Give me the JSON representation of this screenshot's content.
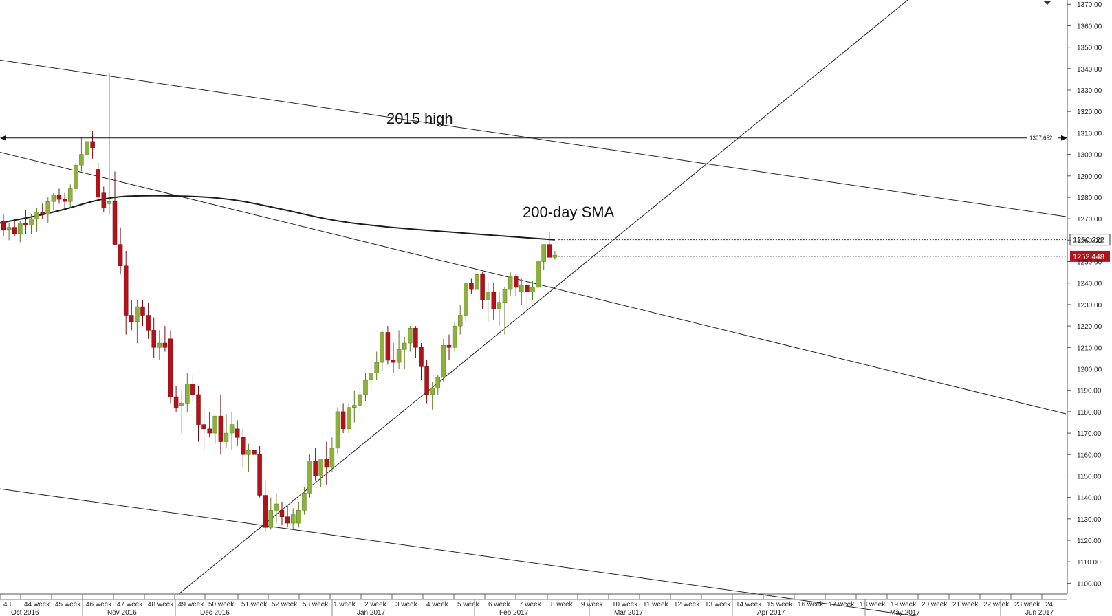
{
  "colors": {
    "up": "#8cb23b",
    "down": "#b3121a",
    "up_edge": "#5a7a1e",
    "down_edge": "#7a0c11",
    "trendline": "#222222",
    "sma": "#1a1a1a",
    "grid": "#e8e8e8",
    "last_price_tag": "#b3121a",
    "sma_tag": "#ffffff"
  },
  "chart_data": {
    "type": "candlestick",
    "y_axis": {
      "range": [
        1095,
        1372
      ],
      "ticks": [
        "1100.00",
        "1110.00",
        "1120.00",
        "1130.00",
        "1140.00",
        "1150.00",
        "1160.00",
        "1170.00",
        "1180.00",
        "1190.00",
        "1200.00",
        "1210.00",
        "1220.00",
        "1230.00",
        "1240.00",
        "1250.00",
        "1260.00",
        "1270.00",
        "1280.00",
        "1290.00",
        "1300.00",
        "1310.00",
        "1320.00",
        "1330.00",
        "1340.00",
        "1350.00",
        "1360.00",
        "1370.00"
      ],
      "position": "right"
    },
    "x_axis": {
      "week_labels": [
        "43",
        "44 week",
        "45 week",
        "46 week",
        "47 week",
        "48 week",
        "49 week",
        "50 week",
        "51 week",
        "52 week",
        "53 week",
        "1 week",
        "2 week",
        "3 week",
        "4 week",
        "5 week",
        "6 week",
        "7 week",
        "8 week",
        "9 week",
        "10 week",
        "11 week",
        "12 week",
        "13 week",
        "14 week",
        "15 week",
        "16 week",
        "17 week",
        "18 week",
        "19 week",
        "20 week",
        "21 week",
        "22 week",
        "23 week",
        "24"
      ],
      "month_labels": [
        "Oct 2016",
        "Nov 2016",
        "Dec 2016",
        "Jan 2017",
        "Feb 2017",
        "Mar 2017",
        "Apr 2017",
        "May 2017",
        "Jun 2017"
      ]
    },
    "candles": [
      [
        1269,
        1272,
        1262,
        1265
      ],
      [
        1265,
        1268,
        1260,
        1266
      ],
      [
        1266,
        1270,
        1262,
        1263
      ],
      [
        1263,
        1269,
        1259,
        1268
      ],
      [
        1268,
        1274,
        1263,
        1267
      ],
      [
        1267,
        1272,
        1263,
        1270
      ],
      [
        1270,
        1275,
        1264,
        1273
      ],
      [
        1273,
        1277,
        1270,
        1272
      ],
      [
        1272,
        1280,
        1268,
        1278
      ],
      [
        1278,
        1282,
        1274,
        1281
      ],
      [
        1281,
        1284,
        1277,
        1279
      ],
      [
        1279,
        1282,
        1274,
        1278
      ],
      [
        1278,
        1286,
        1275,
        1284
      ],
      [
        1284,
        1296,
        1282,
        1295
      ],
      [
        1295,
        1308,
        1292,
        1300
      ],
      [
        1300,
        1307,
        1292,
        1306
      ],
      [
        1306,
        1311,
        1298,
        1303
      ],
      [
        1293,
        1296,
        1278,
        1280
      ],
      [
        1282,
        1285,
        1273,
        1275
      ],
      [
        1277,
        1338,
        1272,
        1278
      ],
      [
        1278,
        1292,
        1258,
        1258
      ],
      [
        1258,
        1266,
        1244,
        1248
      ],
      [
        1248,
        1255,
        1216,
        1225
      ],
      [
        1225,
        1232,
        1218,
        1222
      ],
      [
        1222,
        1232,
        1212,
        1229
      ],
      [
        1229,
        1232,
        1220,
        1225
      ],
      [
        1225,
        1231,
        1214,
        1218
      ],
      [
        1218,
        1224,
        1205,
        1210
      ],
      [
        1210,
        1218,
        1204,
        1212
      ],
      [
        1212,
        1220,
        1208,
        1210
      ],
      [
        1214,
        1218,
        1184,
        1187
      ],
      [
        1187,
        1192,
        1180,
        1182
      ],
      [
        1183,
        1190,
        1170,
        1184
      ],
      [
        1184,
        1198,
        1180,
        1193
      ],
      [
        1193,
        1197,
        1185,
        1188
      ],
      [
        1188,
        1192,
        1166,
        1174
      ],
      [
        1174,
        1182,
        1162,
        1172
      ],
      [
        1172,
        1180,
        1168,
        1170
      ],
      [
        1170,
        1178,
        1165,
        1178
      ],
      [
        1178,
        1188,
        1160,
        1166
      ],
      [
        1166,
        1179,
        1163,
        1170
      ],
      [
        1170,
        1180,
        1162,
        1174
      ],
      [
        1172,
        1176,
        1164,
        1168
      ],
      [
        1168,
        1172,
        1154,
        1160
      ],
      [
        1160,
        1165,
        1152,
        1162
      ],
      [
        1162,
        1166,
        1155,
        1160
      ],
      [
        1160,
        1164,
        1140,
        1141
      ],
      [
        1141,
        1148,
        1124,
        1126
      ],
      [
        1126,
        1140,
        1125,
        1134
      ],
      [
        1134,
        1142,
        1128,
        1137
      ],
      [
        1134,
        1138,
        1127,
        1131
      ],
      [
        1131,
        1136,
        1126,
        1128
      ],
      [
        1128,
        1135,
        1125,
        1132
      ],
      [
        1128,
        1138,
        1126,
        1134
      ],
      [
        1134,
        1145,
        1132,
        1142
      ],
      [
        1142,
        1160,
        1140,
        1157
      ],
      [
        1157,
        1163,
        1148,
        1150
      ],
      [
        1150,
        1158,
        1145,
        1158
      ],
      [
        1158,
        1166,
        1146,
        1154
      ],
      [
        1154,
        1168,
        1152,
        1163
      ],
      [
        1163,
        1182,
        1160,
        1180
      ],
      [
        1180,
        1184,
        1170,
        1172
      ],
      [
        1172,
        1184,
        1170,
        1182
      ],
      [
        1182,
        1190,
        1175,
        1183
      ],
      [
        1183,
        1192,
        1180,
        1188
      ],
      [
        1188,
        1198,
        1185,
        1195
      ],
      [
        1195,
        1204,
        1190,
        1198
      ],
      [
        1198,
        1208,
        1195,
        1203
      ],
      [
        1203,
        1218,
        1199,
        1217
      ],
      [
        1217,
        1220,
        1202,
        1204
      ],
      [
        1204,
        1212,
        1198,
        1203
      ],
      [
        1203,
        1218,
        1200,
        1209
      ],
      [
        1209,
        1215,
        1200,
        1212
      ],
      [
        1212,
        1220,
        1208,
        1219
      ],
      [
        1219,
        1220,
        1205,
        1210
      ],
      [
        1210,
        1212,
        1195,
        1201
      ],
      [
        1201,
        1204,
        1184,
        1188
      ],
      [
        1188,
        1194,
        1181,
        1191
      ],
      [
        1191,
        1197,
        1188,
        1196
      ],
      [
        1196,
        1214,
        1194,
        1211
      ],
      [
        1211,
        1216,
        1204,
        1210
      ],
      [
        1210,
        1222,
        1208,
        1220
      ],
      [
        1220,
        1230,
        1216,
        1225
      ],
      [
        1225,
        1240,
        1222,
        1240
      ],
      [
        1240,
        1242,
        1235,
        1237
      ],
      [
        1237,
        1245,
        1232,
        1244
      ],
      [
        1244,
        1245,
        1228,
        1232
      ],
      [
        1232,
        1240,
        1222,
        1236
      ],
      [
        1236,
        1240,
        1223,
        1228
      ],
      [
        1228,
        1236,
        1220,
        1231
      ],
      [
        1231,
        1238,
        1216,
        1237
      ],
      [
        1237,
        1245,
        1234,
        1243
      ],
      [
        1243,
        1244,
        1234,
        1238
      ],
      [
        1236,
        1242,
        1230,
        1239
      ],
      [
        1239,
        1240,
        1226,
        1236
      ],
      [
        1236,
        1241,
        1232,
        1238
      ],
      [
        1238,
        1251,
        1237,
        1250
      ],
      [
        1250,
        1257,
        1246,
        1258
      ],
      [
        1258,
        1264,
        1252,
        1252
      ],
      [
        1252,
        1255,
        1251,
        1253
      ]
    ],
    "sma_200": {
      "name": "200-day SMA",
      "points": [
        [
          0,
          1268
        ],
        [
          10,
          1273
        ],
        [
          19,
          1280
        ],
        [
          27,
          1281
        ],
        [
          40,
          1280
        ],
        [
          50,
          1275
        ],
        [
          60,
          1269
        ],
        [
          70,
          1266
        ],
        [
          80,
          1264
        ],
        [
          90,
          1262
        ],
        [
          100,
          1260.2
        ]
      ],
      "last_value": "1260.222"
    },
    "horizontal_levels": [
      {
        "name": "2015 high",
        "value": 1307.652,
        "label": "1307.652"
      }
    ],
    "last_price": "1252.448",
    "trendlines": [
      {
        "from": [
          0,
          1344
        ],
        "to": [
          1550,
          1271
        ]
      },
      {
        "from": [
          0,
          1301
        ],
        "to": [
          1550,
          1179
        ]
      },
      {
        "from": [
          0,
          1144
        ],
        "to": [
          1550,
          1075
        ]
      },
      {
        "from": [
          260,
          1095
        ],
        "to": [
          1320,
          1372
        ]
      }
    ],
    "annotations": {
      "high_2015": "2015 high",
      "sma_label": "200-day SMA"
    }
  }
}
